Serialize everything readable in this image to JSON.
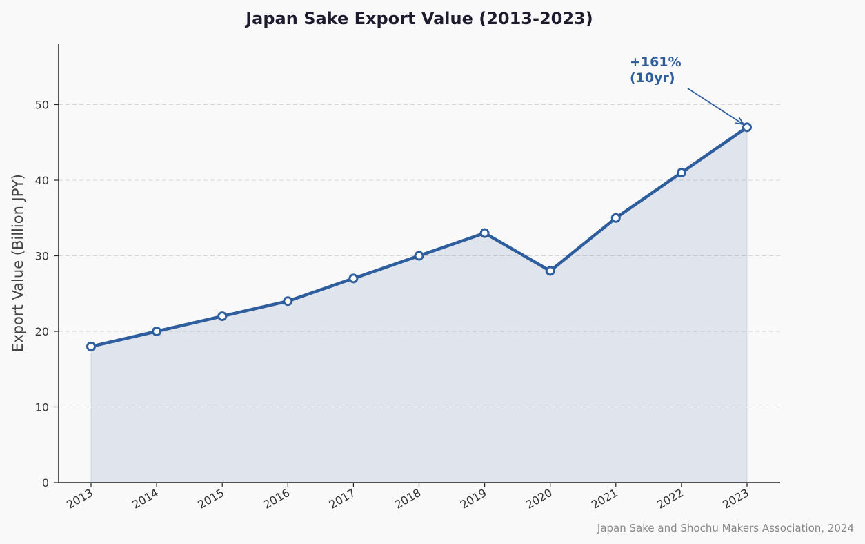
{
  "chart_data": {
    "type": "area",
    "title": "Japan Sake Export Value (2013-2023)",
    "xlabel": "",
    "ylabel": "Export Value (Billion JPY)",
    "categories": [
      "2013",
      "2014",
      "2015",
      "2016",
      "2017",
      "2018",
      "2019",
      "2020",
      "2021",
      "2022",
      "2023"
    ],
    "series": [
      {
        "values": [
          18,
          20,
          22,
          24,
          27,
          30,
          33,
          28,
          35,
          41,
          47
        ]
      }
    ],
    "ylim": [
      0,
      58
    ],
    "yticks": [
      0,
      10,
      20,
      30,
      40,
      50
    ],
    "grid": "horizontal-dashed",
    "annotation": {
      "line1": "+161%",
      "line2": "(10yr)",
      "target_category": "2023"
    },
    "source": "Japan Sake and Shochu Makers Association, 2024",
    "colors": {
      "line": "#2e5e9e",
      "fill": "#2e5e9e",
      "annotation": "#2e5e9e",
      "background": "#f9f9f9"
    }
  }
}
